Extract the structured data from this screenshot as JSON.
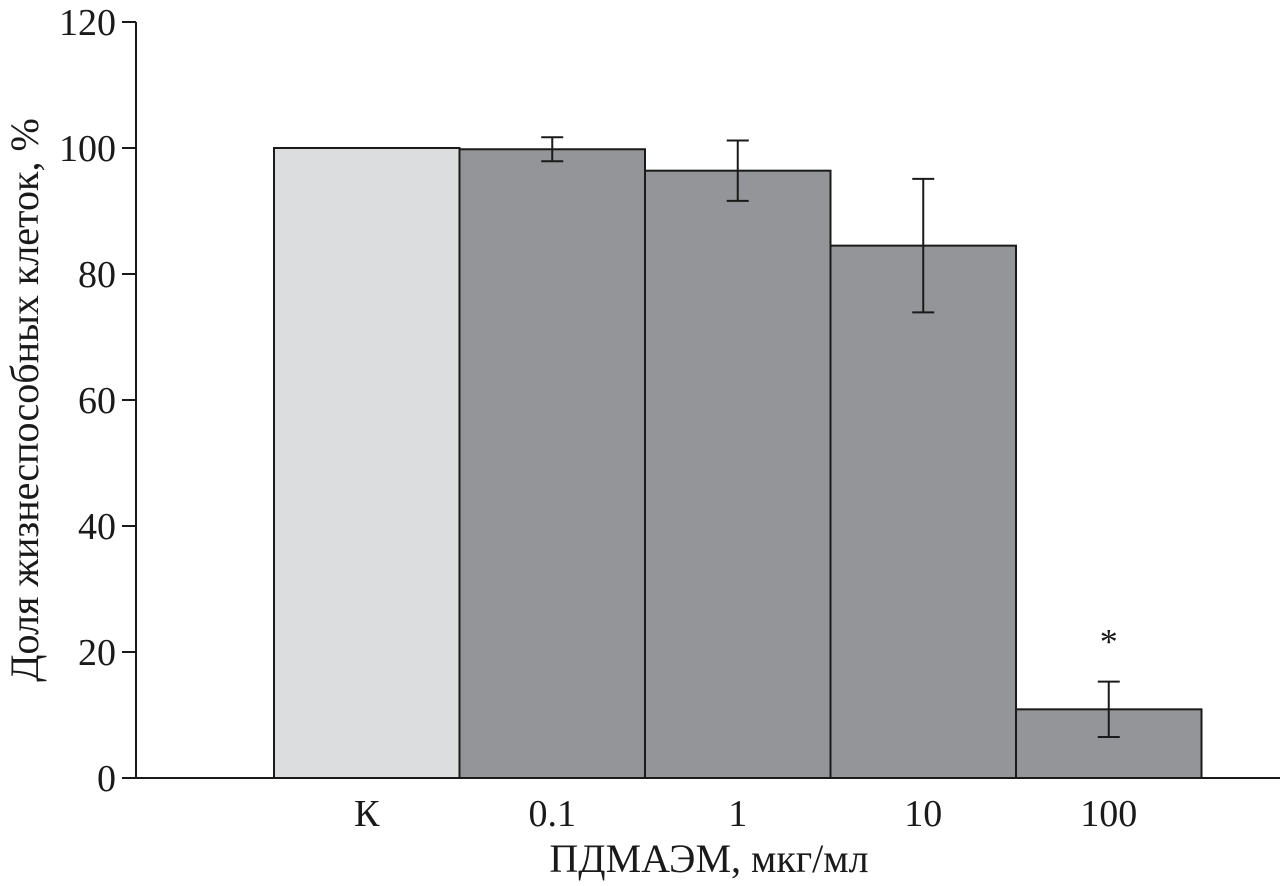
{
  "chart_data": {
    "type": "bar",
    "title": "",
    "xlabel": "ПДМАЭМ, мкг/мл",
    "ylabel": "Доля жизнеспособных клеток, %",
    "ylim": [
      0,
      120
    ],
    "yticks": [
      0,
      20,
      40,
      60,
      80,
      100,
      120
    ],
    "categories": [
      "К",
      "0.1",
      "1",
      "10",
      "100"
    ],
    "values": [
      100,
      99.8,
      96.4,
      84.5,
      10.9
    ],
    "error": [
      null,
      1.9,
      4.8,
      10.6,
      4.4
    ],
    "annotations": [
      {
        "category": "100",
        "text": "*"
      }
    ],
    "colors": [
      "#dcdddf",
      "#949598",
      "#949598",
      "#949598",
      "#949598"
    ],
    "grid": false,
    "legend": "none"
  }
}
